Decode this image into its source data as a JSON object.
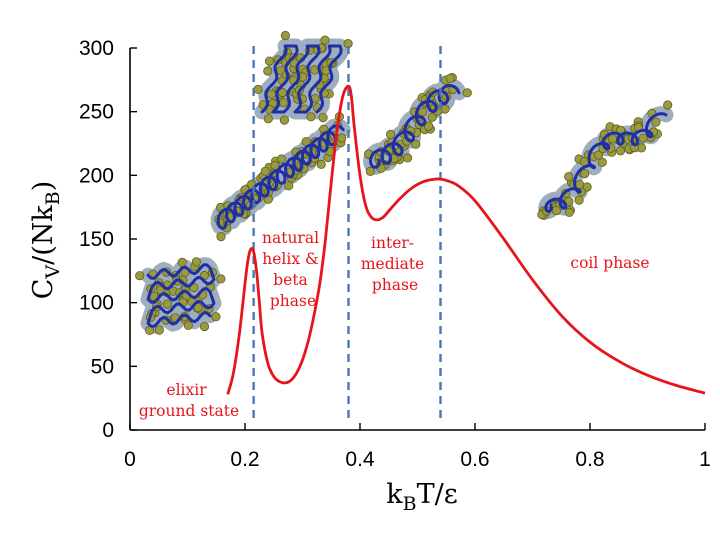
{
  "chart_data": {
    "type": "line",
    "title": "",
    "xlabel": {
      "main": "k",
      "sub": "B",
      "rest": "T/ε"
    },
    "ylabel": {
      "main": "C",
      "sub1": "V",
      "mid": "/(Nk",
      "sub2": "B",
      "end": ")"
    },
    "xlim": [
      0,
      1
    ],
    "ylim": [
      0,
      300
    ],
    "x_ticks": [
      "0",
      "0.2",
      "0.4",
      "0.6",
      "0.8",
      "1"
    ],
    "x_tick_values": [
      0,
      0.2,
      0.4,
      0.6,
      0.8,
      1
    ],
    "y_ticks": [
      "0",
      "50",
      "100",
      "150",
      "200",
      "250",
      "300"
    ],
    "y_tick_values": [
      0,
      50,
      100,
      150,
      200,
      250,
      300
    ],
    "line_color": "#e8141b",
    "guide_color": "#4a78b5",
    "series": [
      {
        "name": "C_V/(Nk_B)",
        "x": [
          0.17,
          0.18,
          0.19,
          0.2,
          0.205,
          0.21,
          0.215,
          0.22,
          0.225,
          0.23,
          0.24,
          0.25,
          0.26,
          0.27,
          0.28,
          0.29,
          0.3,
          0.31,
          0.32,
          0.33,
          0.34,
          0.35,
          0.36,
          0.37,
          0.38,
          0.385,
          0.39,
          0.4,
          0.41,
          0.42,
          0.43,
          0.44,
          0.45,
          0.47,
          0.49,
          0.51,
          0.53,
          0.54,
          0.55,
          0.57,
          0.6,
          0.65,
          0.7,
          0.75,
          0.8,
          0.85,
          0.9,
          0.95,
          1.0
        ],
        "y": [
          28,
          45,
          75,
          115,
          133,
          142,
          140,
          125,
          100,
          75,
          52,
          42,
          38,
          37,
          39,
          45,
          55,
          70,
          90,
          115,
          150,
          195,
          235,
          262,
          270,
          262,
          238,
          200,
          176,
          167,
          165,
          167,
          172,
          182,
          190,
          195,
          197,
          197,
          196,
          192,
          180,
          150,
          118,
          90,
          69,
          54,
          43,
          35,
          29
        ]
      }
    ],
    "phase_transitions_x": [
      0.215,
      0.38,
      0.54
    ],
    "annotations": [
      {
        "id": "elixir",
        "lines": [
          "elixir",
          "ground state"
        ]
      },
      {
        "id": "natural",
        "lines": [
          "natural",
          "helix &",
          "beta",
          "phase"
        ]
      },
      {
        "id": "intermediate",
        "lines": [
          "inter-",
          "mediate",
          "phase"
        ]
      },
      {
        "id": "coil",
        "lines": [
          "coil phase"
        ]
      }
    ],
    "grid": false,
    "legend": "none"
  }
}
